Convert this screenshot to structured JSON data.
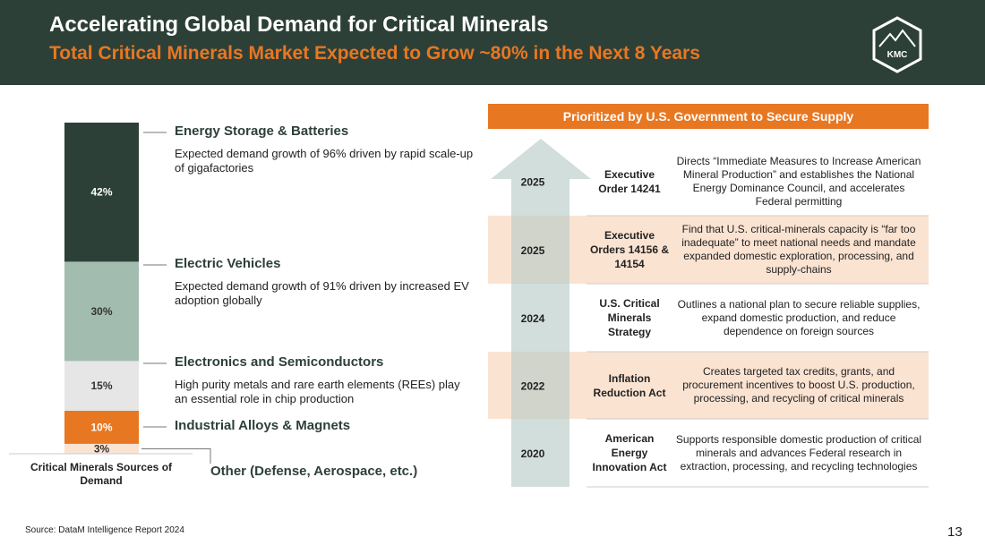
{
  "header": {
    "title": "Accelerating Global Demand for Critical Minerals",
    "subtitle": "Total Critical Minerals Market Expected to Grow ~80% in the Next 8 Years",
    "logo": "KMC"
  },
  "chart_data": {
    "type": "stacked-bar",
    "categories": [
      "Critical Minerals Sources of Demand"
    ],
    "series": [
      {
        "name": "Other (Defense, Aerospace, etc.)",
        "color": "#fbe3d2",
        "values": [
          3
        ],
        "value_labels": [
          "3%"
        ]
      },
      {
        "name": "Industrial Alloys & Magnets",
        "color": "#e87722",
        "values": [
          10
        ],
        "value_labels": [
          "10%"
        ]
      },
      {
        "name": "Electronics and Semiconductors",
        "color": "#e6e6e6",
        "values": [
          15
        ],
        "value_labels": [
          "15%"
        ],
        "description": "High purity metals and rare earth elements (REEs) play an essential role in chip production"
      },
      {
        "name": "Electric Vehicles",
        "color": "#a3bcb0",
        "values": [
          30
        ],
        "value_labels": [
          "30%"
        ],
        "description": "Expected demand growth of 91% driven by increased EV adoption globally"
      },
      {
        "name": "Energy Storage & Batteries",
        "color": "#2d4038",
        "values": [
          42
        ],
        "value_labels": [
          "42%"
        ],
        "description": "Expected demand growth of 96% driven by rapid scale-up of gigafactories"
      }
    ]
  },
  "table": {
    "title": "Prioritized by U.S. Government to Secure Supply",
    "rows": [
      [
        "2025",
        "Executive Order 14241",
        "Directs “Immediate Measures to Increase American Mineral Production” and establishes the National Energy Dominance Council, and accelerates Federal permitting"
      ],
      [
        "2025",
        "Executive Orders 14156 & 14154",
        "Find that U.S. critical-minerals capacity is “far too inadequate” to meet national needs and mandate expanded domestic exploration, processing, and supply-chains"
      ],
      [
        "2024",
        "U.S. Critical Minerals Strategy",
        "Outlines a national plan to secure reliable supplies, expand domestic production, and reduce dependence on foreign sources"
      ],
      [
        "2022",
        "Inflation Reduction Act",
        "Creates targeted tax credits, grants, and procurement incentives to boost U.S. production, processing, and recycling of critical minerals"
      ],
      [
        "2020",
        "American Energy Innovation Act",
        "Supports responsible domestic production of critical minerals and advances Federal research in extraction, processing, and recycling technologies"
      ]
    ]
  },
  "footer": {
    "source": "Source: DataM Intelligence Report 2024",
    "page": "13"
  }
}
